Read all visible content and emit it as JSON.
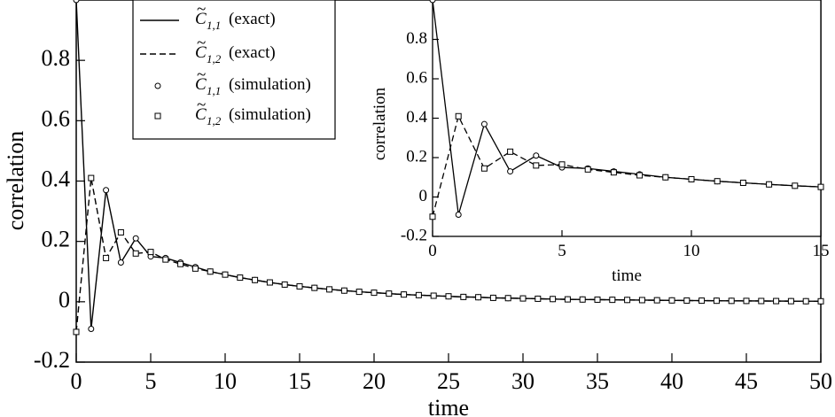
{
  "chart_data": [
    {
      "id": "main",
      "type": "line",
      "title": "",
      "xlabel": "time",
      "ylabel": "correlation",
      "xlim": [
        0,
        50
      ],
      "ylim": [
        -0.2,
        1.0
      ],
      "xticks": [
        0,
        5,
        10,
        15,
        20,
        25,
        30,
        35,
        40,
        45,
        50
      ],
      "yticks": [
        -0.2,
        0,
        0.2,
        0.4,
        0.6,
        0.8
      ],
      "xtick_labels": [
        "0",
        "5",
        "10",
        "15",
        "20",
        "25",
        "30",
        "35",
        "40",
        "45",
        "50"
      ],
      "ytick_labels": [
        "-0.2",
        "0",
        "0.2",
        "0.4",
        "0.6",
        "0.8"
      ],
      "grid": false,
      "legend_position": "top-left",
      "series": [
        {
          "name": "C11 (exact)",
          "style": "solid",
          "x": [
            0,
            1,
            2,
            3,
            4,
            5,
            6,
            7,
            8,
            9,
            10,
            11,
            12,
            13,
            14,
            15,
            16,
            17,
            18,
            19,
            20,
            21,
            22,
            23,
            24,
            25,
            26,
            27,
            28,
            29,
            30,
            31,
            32,
            33,
            34,
            35,
            36,
            37,
            38,
            39,
            40,
            41,
            42,
            43,
            44,
            45,
            46,
            47,
            48,
            49,
            50
          ],
          "y": [
            1.0,
            -0.09,
            0.37,
            0.13,
            0.21,
            0.15,
            0.145,
            0.13,
            0.115,
            0.1,
            0.09,
            0.08,
            0.072,
            0.064,
            0.057,
            0.051,
            0.046,
            0.041,
            0.037,
            0.033,
            0.03,
            0.027,
            0.024,
            0.022,
            0.02,
            0.018,
            0.016,
            0.015,
            0.013,
            0.012,
            0.011,
            0.01,
            0.009,
            0.008,
            0.0075,
            0.007,
            0.0065,
            0.006,
            0.0055,
            0.005,
            0.0045,
            0.004,
            0.0037,
            0.0034,
            0.003,
            0.0028,
            0.0025,
            0.0023,
            0.002,
            0.0018,
            0.0016
          ]
        },
        {
          "name": "C12 (exact)",
          "style": "dashed",
          "x": [
            0,
            1,
            2,
            3,
            4,
            5,
            6,
            7,
            8,
            9,
            10,
            11,
            12,
            13,
            14,
            15,
            16,
            17,
            18,
            19,
            20,
            21,
            22,
            23,
            24,
            25,
            26,
            27,
            28,
            29,
            30,
            31,
            32,
            33,
            34,
            35,
            36,
            37,
            38,
            39,
            40,
            41,
            42,
            43,
            44,
            45,
            46,
            47,
            48,
            49,
            50
          ],
          "y": [
            -0.1,
            0.41,
            0.145,
            0.23,
            0.16,
            0.165,
            0.14,
            0.125,
            0.11,
            0.1,
            0.09,
            0.08,
            0.072,
            0.064,
            0.057,
            0.051,
            0.046,
            0.041,
            0.037,
            0.033,
            0.03,
            0.027,
            0.024,
            0.022,
            0.02,
            0.018,
            0.016,
            0.015,
            0.013,
            0.012,
            0.011,
            0.01,
            0.009,
            0.008,
            0.0075,
            0.007,
            0.0065,
            0.006,
            0.0055,
            0.005,
            0.0045,
            0.004,
            0.0037,
            0.0034,
            0.003,
            0.0028,
            0.0025,
            0.0023,
            0.002,
            0.0018,
            0.0016
          ]
        },
        {
          "name": "C11 (simulation)",
          "style": "circle",
          "x": [
            0,
            1,
            2,
            3,
            4,
            5,
            6,
            7,
            8,
            9,
            10,
            11,
            12,
            13,
            14,
            15,
            16,
            17,
            18,
            19,
            20,
            21,
            22,
            23,
            24,
            25,
            26,
            27,
            28,
            29,
            30,
            31,
            32,
            33,
            34,
            35,
            36,
            37,
            38,
            39,
            40,
            41,
            42,
            43,
            44,
            45,
            46,
            47,
            48,
            49,
            50
          ],
          "y": [
            1.0,
            -0.09,
            0.37,
            0.13,
            0.21,
            0.15,
            0.145,
            0.13,
            0.115,
            0.1,
            0.09,
            0.08,
            0.072,
            0.064,
            0.057,
            0.051,
            0.046,
            0.041,
            0.037,
            0.033,
            0.03,
            0.027,
            0.024,
            0.022,
            0.02,
            0.018,
            0.016,
            0.015,
            0.013,
            0.012,
            0.011,
            0.01,
            0.009,
            0.008,
            0.0075,
            0.007,
            0.0065,
            0.006,
            0.0055,
            0.005,
            0.0045,
            0.004,
            0.0037,
            0.0034,
            0.003,
            0.0028,
            0.0025,
            0.0023,
            0.002,
            0.0018,
            0.0016
          ]
        },
        {
          "name": "C12 (simulation)",
          "style": "square",
          "x": [
            0,
            1,
            2,
            3,
            4,
            5,
            6,
            7,
            8,
            9,
            10,
            11,
            12,
            13,
            14,
            15,
            16,
            17,
            18,
            19,
            20,
            21,
            22,
            23,
            24,
            25,
            26,
            27,
            28,
            29,
            30,
            31,
            32,
            33,
            34,
            35,
            36,
            37,
            38,
            39,
            40,
            41,
            42,
            43,
            44,
            45,
            46,
            47,
            48,
            49,
            50
          ],
          "y": [
            -0.1,
            0.41,
            0.145,
            0.23,
            0.16,
            0.165,
            0.14,
            0.125,
            0.11,
            0.1,
            0.09,
            0.08,
            0.072,
            0.064,
            0.057,
            0.051,
            0.046,
            0.041,
            0.037,
            0.033,
            0.03,
            0.027,
            0.024,
            0.022,
            0.02,
            0.018,
            0.016,
            0.015,
            0.013,
            0.012,
            0.011,
            0.01,
            0.009,
            0.008,
            0.0075,
            0.007,
            0.0065,
            0.006,
            0.0055,
            0.005,
            0.0045,
            0.004,
            0.0037,
            0.0034,
            0.003,
            0.0028,
            0.0025,
            0.0023,
            0.002,
            0.0018,
            0.0016
          ]
        }
      ]
    },
    {
      "id": "inset",
      "type": "line",
      "title": "",
      "xlabel": "time",
      "ylabel": "correlation",
      "xlim": [
        0,
        15
      ],
      "ylim": [
        -0.2,
        1.0
      ],
      "xticks": [
        0,
        5,
        10,
        15
      ],
      "yticks": [
        -0.2,
        0,
        0.2,
        0.4,
        0.6,
        0.8
      ],
      "xtick_labels": [
        "0",
        "5",
        "10",
        "15"
      ],
      "ytick_labels": [
        "-0.2",
        "0",
        "0.2",
        "0.4",
        "0.6",
        "0.8"
      ],
      "grid": false,
      "series": [
        {
          "name": "C11 (exact)",
          "style": "solid",
          "x": [
            0,
            1,
            2,
            3,
            4,
            5,
            6,
            7,
            8,
            9,
            10,
            11,
            12,
            13,
            14,
            15
          ],
          "y": [
            1.0,
            -0.09,
            0.37,
            0.13,
            0.21,
            0.15,
            0.145,
            0.13,
            0.115,
            0.1,
            0.09,
            0.08,
            0.072,
            0.064,
            0.057,
            0.051
          ]
        },
        {
          "name": "C12 (exact)",
          "style": "dashed",
          "x": [
            0,
            1,
            2,
            3,
            4,
            5,
            6,
            7,
            8,
            9,
            10,
            11,
            12,
            13,
            14,
            15
          ],
          "y": [
            -0.1,
            0.41,
            0.145,
            0.23,
            0.16,
            0.165,
            0.14,
            0.125,
            0.11,
            0.1,
            0.09,
            0.08,
            0.072,
            0.064,
            0.057,
            0.051
          ]
        },
        {
          "name": "C11 (simulation)",
          "style": "circle",
          "x": [
            0,
            1,
            2,
            3,
            4,
            5,
            6,
            7,
            8,
            9,
            10,
            11,
            12,
            13,
            14,
            15
          ],
          "y": [
            1.0,
            -0.09,
            0.37,
            0.13,
            0.21,
            0.15,
            0.145,
            0.13,
            0.115,
            0.1,
            0.09,
            0.08,
            0.072,
            0.064,
            0.057,
            0.051
          ]
        },
        {
          "name": "C12 (simulation)",
          "style": "square",
          "x": [
            0,
            1,
            2,
            3,
            4,
            5,
            6,
            7,
            8,
            9,
            10,
            11,
            12,
            13,
            14,
            15
          ],
          "y": [
            -0.1,
            0.41,
            0.145,
            0.23,
            0.16,
            0.165,
            0.14,
            0.125,
            0.11,
            0.1,
            0.09,
            0.08,
            0.072,
            0.064,
            0.057,
            0.051
          ]
        }
      ]
    }
  ],
  "legend": {
    "entries": [
      {
        "symbol": "C",
        "subscript": "1,1",
        "label": "(exact)",
        "marker": "solid"
      },
      {
        "symbol": "C",
        "subscript": "1,2",
        "label": "(exact)",
        "marker": "dashed"
      },
      {
        "symbol": "C",
        "subscript": "1,1",
        "label": "(simulation)",
        "marker": "circle"
      },
      {
        "symbol": "C",
        "subscript": "1,2",
        "label": "(simulation)",
        "marker": "square"
      }
    ],
    "tilde": "~"
  }
}
